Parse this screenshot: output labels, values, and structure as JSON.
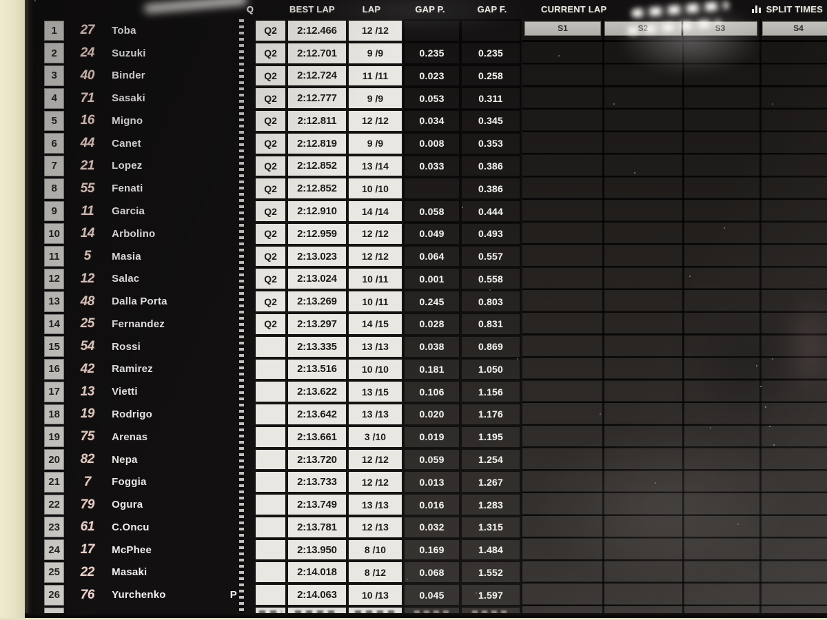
{
  "screen": {
    "header": {
      "q": "Q",
      "best_lap": "BEST LAP",
      "lap": "LAP",
      "gap_p": "GAP P.",
      "gap_f": "GAP F.",
      "current_lap": "CURRENT LAP",
      "split_times": "SPLIT TIMES",
      "split_times_icon": "bar-chart-icon"
    },
    "split_headers": [
      "S1",
      "S2",
      "S3",
      "S4"
    ],
    "rows": [
      {
        "pos": "1",
        "num": "27",
        "name": "Toba",
        "flag": "",
        "q": "Q2",
        "best": "2:12.466",
        "lap": "12 /12",
        "gap_p": "",
        "gap_f": ""
      },
      {
        "pos": "2",
        "num": "24",
        "name": "Suzuki",
        "flag": "",
        "q": "Q2",
        "best": "2:12.701",
        "lap": "9 /9",
        "gap_p": "0.235",
        "gap_f": "0.235"
      },
      {
        "pos": "3",
        "num": "40",
        "name": "Binder",
        "flag": "",
        "q": "Q2",
        "best": "2:12.724",
        "lap": "11 /11",
        "gap_p": "0.023",
        "gap_f": "0.258"
      },
      {
        "pos": "4",
        "num": "71",
        "name": "Sasaki",
        "flag": "",
        "q": "Q2",
        "best": "2:12.777",
        "lap": "9 /9",
        "gap_p": "0.053",
        "gap_f": "0.311"
      },
      {
        "pos": "5",
        "num": "16",
        "name": "Migno",
        "flag": "",
        "q": "Q2",
        "best": "2:12.811",
        "lap": "12 /12",
        "gap_p": "0.034",
        "gap_f": "0.345"
      },
      {
        "pos": "6",
        "num": "44",
        "name": "Canet",
        "flag": "",
        "q": "Q2",
        "best": "2:12.819",
        "lap": "9 /9",
        "gap_p": "0.008",
        "gap_f": "0.353"
      },
      {
        "pos": "7",
        "num": "21",
        "name": "Lopez",
        "flag": "",
        "q": "Q2",
        "best": "2:12.852",
        "lap": "13 /14",
        "gap_p": "0.033",
        "gap_f": "0.386"
      },
      {
        "pos": "8",
        "num": "55",
        "name": "Fenati",
        "flag": "",
        "q": "Q2",
        "best": "2:12.852",
        "lap": "10 /10",
        "gap_p": "",
        "gap_f": "0.386"
      },
      {
        "pos": "9",
        "num": "11",
        "name": "Garcia",
        "flag": "",
        "q": "Q2",
        "best": "2:12.910",
        "lap": "14 /14",
        "gap_p": "0.058",
        "gap_f": "0.444"
      },
      {
        "pos": "10",
        "num": "14",
        "name": "Arbolino",
        "flag": "",
        "q": "Q2",
        "best": "2:12.959",
        "lap": "12 /12",
        "gap_p": "0.049",
        "gap_f": "0.493"
      },
      {
        "pos": "11",
        "num": "5",
        "name": "Masia",
        "flag": "",
        "q": "Q2",
        "best": "2:13.023",
        "lap": "12 /12",
        "gap_p": "0.064",
        "gap_f": "0.557"
      },
      {
        "pos": "12",
        "num": "12",
        "name": "Salac",
        "flag": "",
        "q": "Q2",
        "best": "2:13.024",
        "lap": "10 /11",
        "gap_p": "0.001",
        "gap_f": "0.558"
      },
      {
        "pos": "13",
        "num": "48",
        "name": "Dalla Porta",
        "flag": "",
        "q": "Q2",
        "best": "2:13.269",
        "lap": "10 /11",
        "gap_p": "0.245",
        "gap_f": "0.803"
      },
      {
        "pos": "14",
        "num": "25",
        "name": "Fernandez",
        "flag": "",
        "q": "Q2",
        "best": "2:13.297",
        "lap": "14 /15",
        "gap_p": "0.028",
        "gap_f": "0.831"
      },
      {
        "pos": "15",
        "num": "54",
        "name": "Rossi",
        "flag": "",
        "q": "",
        "best": "2:13.335",
        "lap": "13 /13",
        "gap_p": "0.038",
        "gap_f": "0.869"
      },
      {
        "pos": "16",
        "num": "42",
        "name": "Ramirez",
        "flag": "",
        "q": "",
        "best": "2:13.516",
        "lap": "10 /10",
        "gap_p": "0.181",
        "gap_f": "1.050"
      },
      {
        "pos": "17",
        "num": "13",
        "name": "Vietti",
        "flag": "",
        "q": "",
        "best": "2:13.622",
        "lap": "13 /15",
        "gap_p": "0.106",
        "gap_f": "1.156"
      },
      {
        "pos": "18",
        "num": "19",
        "name": "Rodrigo",
        "flag": "",
        "q": "",
        "best": "2:13.642",
        "lap": "13 /13",
        "gap_p": "0.020",
        "gap_f": "1.176"
      },
      {
        "pos": "19",
        "num": "75",
        "name": "Arenas",
        "flag": "",
        "q": "",
        "best": "2:13.661",
        "lap": "3 /10",
        "gap_p": "0.019",
        "gap_f": "1.195"
      },
      {
        "pos": "20",
        "num": "82",
        "name": "Nepa",
        "flag": "",
        "q": "",
        "best": "2:13.720",
        "lap": "12 /12",
        "gap_p": "0.059",
        "gap_f": "1.254"
      },
      {
        "pos": "21",
        "num": "7",
        "name": "Foggia",
        "flag": "",
        "q": "",
        "best": "2:13.733",
        "lap": "12 /12",
        "gap_p": "0.013",
        "gap_f": "1.267"
      },
      {
        "pos": "22",
        "num": "79",
        "name": "Ogura",
        "flag": "",
        "q": "",
        "best": "2:13.749",
        "lap": "13 /13",
        "gap_p": "0.016",
        "gap_f": "1.283"
      },
      {
        "pos": "23",
        "num": "61",
        "name": "C.Oncu",
        "flag": "",
        "q": "",
        "best": "2:13.781",
        "lap": "12 /13",
        "gap_p": "0.032",
        "gap_f": "1.315"
      },
      {
        "pos": "24",
        "num": "17",
        "name": "McPhee",
        "flag": "",
        "q": "",
        "best": "2:13.950",
        "lap": "8 /10",
        "gap_p": "0.169",
        "gap_f": "1.484"
      },
      {
        "pos": "25",
        "num": "22",
        "name": "Masaki",
        "flag": "",
        "q": "",
        "best": "2:14.018",
        "lap": "8 /12",
        "gap_p": "0.068",
        "gap_f": "1.552"
      },
      {
        "pos": "26",
        "num": "76",
        "name": "Yurchenko",
        "flag": "P",
        "q": "",
        "best": "2:14.063",
        "lap": "10 /13",
        "gap_p": "0.045",
        "gap_f": "1.597"
      }
    ],
    "partial_row_present": true,
    "colors": {
      "light_cell": "#e9e7e2",
      "position_cell": "#d8d6d1",
      "gap_text": "#f2f1ee",
      "rider_number": "#f1ded6",
      "wall_beige": "#eae5c8",
      "screen_black": "#121010"
    }
  }
}
